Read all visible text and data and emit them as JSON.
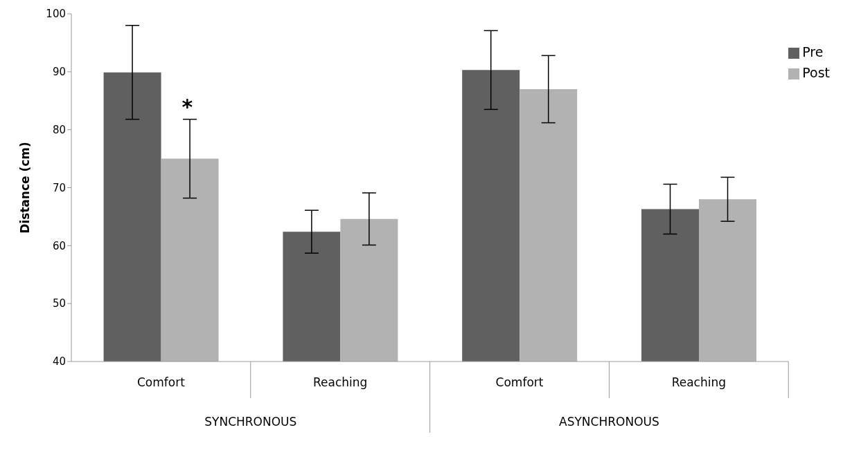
{
  "chart_data": {
    "type": "bar",
    "ylabel": "Distance (cm)",
    "categories": [
      "Comfort",
      "Reaching",
      "Comfort",
      "Reaching"
    ],
    "series": [
      {
        "name": "Pre",
        "color": "#606060",
        "values": [
          89.9,
          62.4,
          90.3,
          66.3
        ],
        "errors": [
          8.1,
          3.7,
          6.8,
          4.3
        ]
      },
      {
        "name": "Post",
        "color": "#b2b2b2",
        "values": [
          75.0,
          64.6,
          87.0,
          68.0
        ],
        "errors": [
          6.8,
          4.5,
          5.8,
          3.8
        ]
      }
    ],
    "ylim": [
      40,
      100
    ],
    "yticks": [
      40,
      50,
      60,
      70,
      80,
      90,
      100
    ],
    "grid": false,
    "legend": "top right",
    "annotations": [
      "SYNCHRONOUS",
      "ASYNCHRONOUS",
      {
        "text": "*",
        "x": "Comfort",
        "y": 84
      }
    ]
  }
}
